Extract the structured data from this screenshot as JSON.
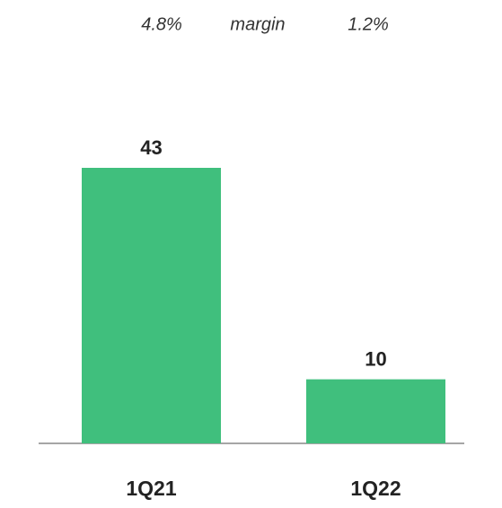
{
  "chart_data": {
    "type": "bar",
    "categories": [
      "1Q21",
      "1Q22"
    ],
    "values": [
      43,
      10
    ],
    "color": "#40bf7d",
    "margin_label": "margin",
    "margin_values": [
      4.8,
      1.2
    ],
    "margin_value_labels": [
      "4.8%",
      "1.2%"
    ]
  }
}
